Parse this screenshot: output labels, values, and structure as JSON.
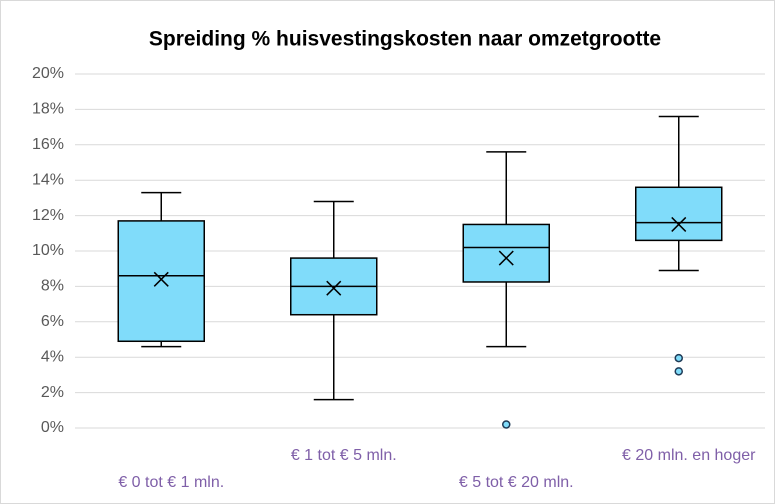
{
  "chart_data": {
    "type": "box",
    "title": "Spreiding % huisvestingskosten naar omzetgrootte",
    "categories": [
      "€ 0 tot € 1 mln.",
      "€ 1 tot € 5 mln.",
      "€ 5 tot € 20 mln.",
      "€ 20 mln. en hoger"
    ],
    "boxes": [
      {
        "min": 4.6,
        "q1": 4.9,
        "median": 8.6,
        "q3": 11.7,
        "max": 13.3,
        "mean": 8.4,
        "outliers": []
      },
      {
        "min": 1.6,
        "q1": 6.4,
        "median": 8.0,
        "q3": 9.6,
        "max": 12.8,
        "mean": 7.9,
        "outliers": []
      },
      {
        "min": 4.6,
        "q1": 8.25,
        "median": 10.2,
        "q3": 11.5,
        "max": 15.6,
        "mean": 9.6,
        "outliers": [
          0.2
        ]
      },
      {
        "min": 8.9,
        "q1": 10.6,
        "median": 11.6,
        "q3": 13.6,
        "max": 17.6,
        "mean": 11.5,
        "outliers": [
          3.95,
          3.2
        ]
      }
    ],
    "color": "#80dcfa",
    "ylim": [
      0,
      20
    ],
    "yticks": [
      {
        "value": 0,
        "label": "0%"
      },
      {
        "value": 2,
        "label": "2%"
      },
      {
        "value": 4,
        "label": "4%"
      },
      {
        "value": 6,
        "label": "6%"
      },
      {
        "value": 8,
        "label": "8%"
      },
      {
        "value": 10,
        "label": "10%"
      },
      {
        "value": 12,
        "label": "12%"
      },
      {
        "value": 14,
        "label": "14%"
      },
      {
        "value": 16,
        "label": "16%"
      },
      {
        "value": 18,
        "label": "18%"
      },
      {
        "value": 20,
        "label": "20%"
      }
    ],
    "grid": true
  }
}
